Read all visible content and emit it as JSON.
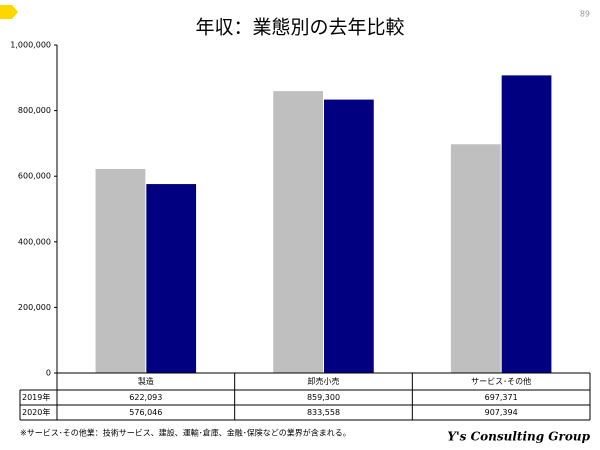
{
  "chart_data": {
    "type": "bar",
    "title": "年収：業態別の去年比較",
    "page_number": "89",
    "categories": [
      "製造",
      "卸売小売",
      "サービス･その他"
    ],
    "series": [
      {
        "name": "2019年",
        "color": "#bfbfbf",
        "values": [
          622093,
          859300,
          697371
        ],
        "value_labels": [
          "622,093",
          "859,300",
          "697,371"
        ]
      },
      {
        "name": "2020年",
        "color": "#000080",
        "values": [
          576046,
          833558,
          907394
        ],
        "value_labels": [
          "576,046",
          "833,558",
          "907,394"
        ]
      }
    ],
    "ylim": [
      0,
      1000000
    ],
    "yticks": [
      0,
      {
        "value": 200000,
        "label": "200,000"
      },
      {
        "value": 400000,
        "label": "400,000"
      },
      {
        "value": 600000,
        "label": "600,000"
      },
      {
        "value": 800000,
        "label": "800,000"
      },
      {
        "value": 1000000,
        "label": "1,000,000"
      }
    ],
    "footnote": "※サービス･その他業：技術サービス、建設、運輸･倉庫、金融･保険などの業界が含まれる。",
    "brand": "Y's Consulting Group"
  }
}
